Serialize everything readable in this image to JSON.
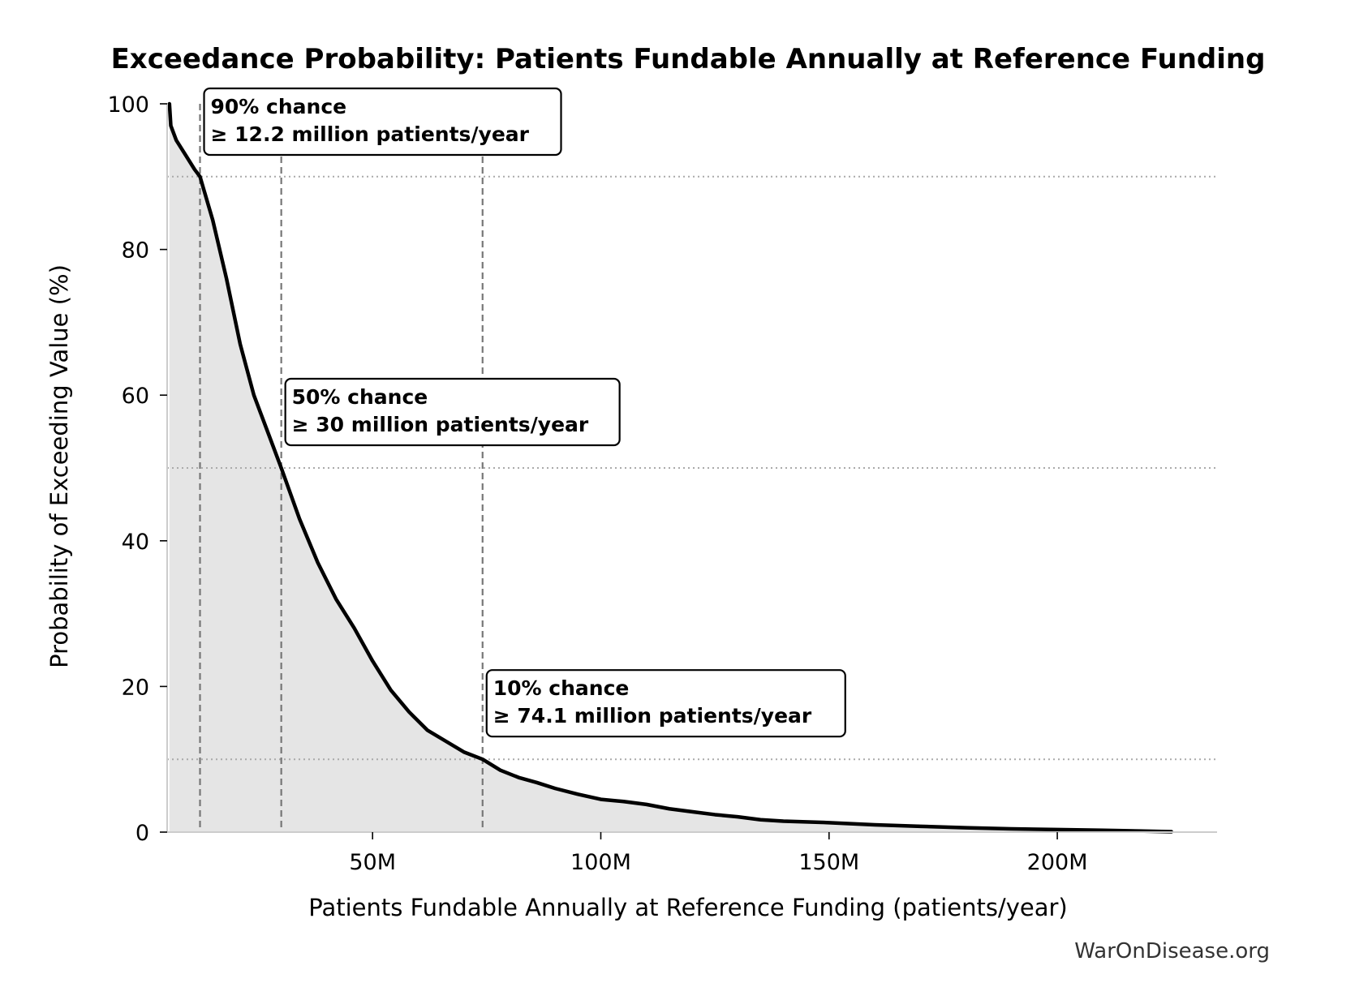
{
  "chart_data": {
    "type": "area",
    "title": "Exceedance Probability: Patients Fundable Annually at Reference Funding",
    "xlabel": "Patients Fundable Annually at Reference Funding (patients/year)",
    "ylabel": "Probability of Exceeding Value (%)",
    "xlim": [
      5,
      235
    ],
    "ylim": [
      0,
      100
    ],
    "x_unit": "million patients/year",
    "xticks": [
      {
        "value": 50,
        "label": "50M"
      },
      {
        "value": 100,
        "label": "100M"
      },
      {
        "value": 150,
        "label": "150M"
      },
      {
        "value": 200,
        "label": "200M"
      }
    ],
    "yticks": [
      {
        "value": 0,
        "label": "0"
      },
      {
        "value": 20,
        "label": "20"
      },
      {
        "value": 40,
        "label": "40"
      },
      {
        "value": 60,
        "label": "60"
      },
      {
        "value": 80,
        "label": "80"
      },
      {
        "value": 100,
        "label": "100"
      }
    ],
    "series": [
      {
        "x": [
          5.5,
          5.8,
          7,
          9,
          11,
          12.2,
          15,
          18,
          21,
          24,
          27,
          30,
          34,
          38,
          42,
          46,
          50,
          54,
          58,
          62,
          66,
          70,
          74.1,
          78,
          82,
          86,
          90,
          95,
          100,
          105,
          110,
          115,
          120,
          125,
          130,
          135,
          140,
          150,
          160,
          170,
          180,
          190,
          200,
          210,
          218,
          225
        ],
        "y": [
          100,
          97,
          95,
          93,
          91,
          90,
          84,
          76,
          67,
          60,
          55,
          50,
          43,
          37,
          32,
          28,
          23.5,
          19.5,
          16.5,
          14,
          12.5,
          11,
          10,
          8.5,
          7.5,
          6.8,
          6,
          5.2,
          4.5,
          4.2,
          3.8,
          3.2,
          2.8,
          2.4,
          2.1,
          1.7,
          1.5,
          1.3,
          1.0,
          0.8,
          0.6,
          0.45,
          0.35,
          0.25,
          0.15,
          0.05
        ],
        "color": "#000000",
        "fill": "#e5e5e5"
      }
    ],
    "reference_lines": {
      "vertical": [
        12.2,
        30,
        74.1
      ],
      "horizontal": [
        90,
        50,
        10
      ]
    },
    "annotations": [
      {
        "x": 12.2,
        "y": 90,
        "line1": "90% chance",
        "line2": "≥ 12.2 million patients/year"
      },
      {
        "x": 30,
        "y": 50,
        "line1": "50% chance",
        "line2": "≥ 30 million patients/year"
      },
      {
        "x": 74.1,
        "y": 10,
        "line1": "10% chance",
        "line2": "≥ 74.1 million patients/year"
      }
    ],
    "grid": false,
    "legend": "none"
  },
  "footer": {
    "watermark": "WarOnDisease.org"
  }
}
